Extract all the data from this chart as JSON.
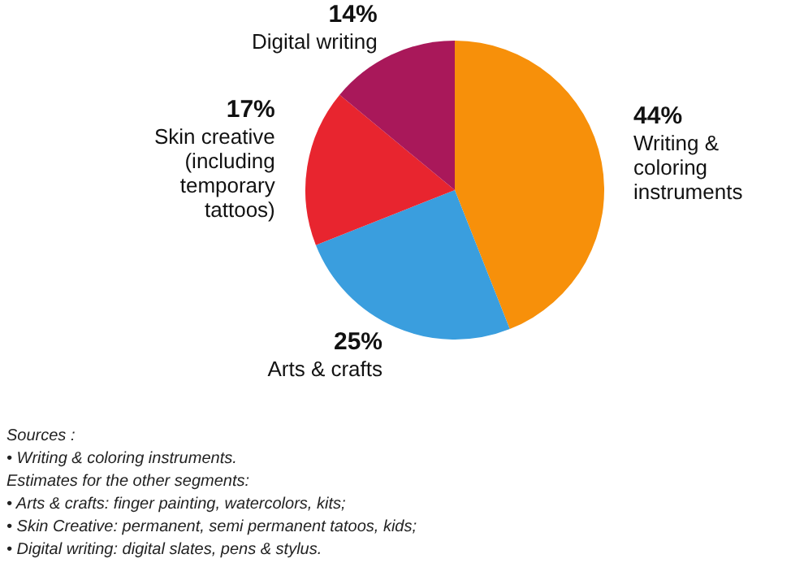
{
  "chart_data": {
    "type": "pie",
    "categories": [
      "Writing & coloring instruments",
      "Arts & crafts",
      "Skin creative (including temporary tattoos)",
      "Digital writing"
    ],
    "values": [
      44,
      25,
      17,
      14
    ],
    "colors": [
      "#f7900a",
      "#3a9ede",
      "#e8252f",
      "#a9185a"
    ],
    "value_labels": [
      "44%",
      "25%",
      "17%",
      "14%"
    ],
    "legend": false,
    "annotations": [
      "Sources :",
      "•  Writing & coloring instruments.",
      "Estimates for the other segments:",
      "• Arts & crafts: finger painting, watercolors, kits;",
      "• Skin Creative: permanent, semi permanent tatoos, kids;",
      "• Digital writing: digital slates, pens & stylus."
    ]
  }
}
